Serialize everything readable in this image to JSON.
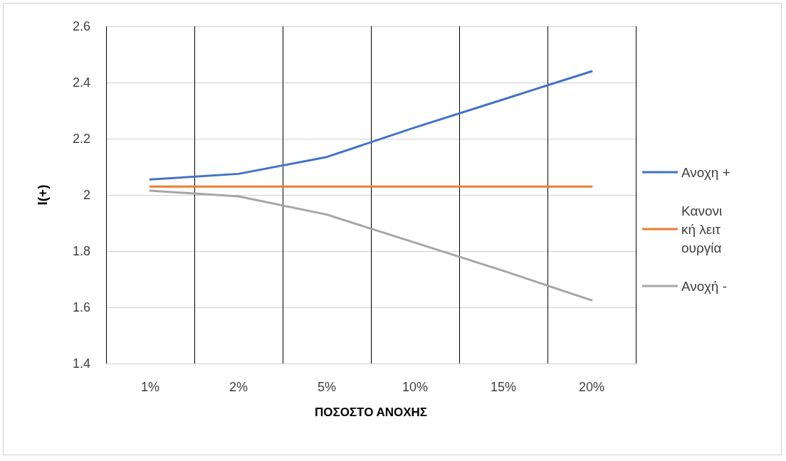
{
  "chart_data": {
    "type": "line",
    "xlabel": "ΠΟΣΟΣΤΟ ΑΝΟΧΗΣ",
    "ylabel": "I(+)",
    "categories": [
      "1%",
      "2%",
      "5%",
      "10%",
      "15%",
      "20%"
    ],
    "series": [
      {
        "name": "Ανοχη +",
        "color": "#4472c4",
        "values": [
          2.055,
          2.075,
          2.135,
          2.24,
          2.34,
          2.44
        ]
      },
      {
        "name": "Κανονική λειτουργία",
        "color": "#ed7d31",
        "values": [
          2.03,
          2.03,
          2.03,
          2.03,
          2.03,
          2.03
        ]
      },
      {
        "name": "Ανοχή -",
        "color": "#a5a5a5",
        "values": [
          2.015,
          1.995,
          1.93,
          1.83,
          1.73,
          1.625
        ]
      }
    ],
    "ylim": [
      1.4,
      2.6
    ],
    "yticks": [
      1.4,
      1.6,
      1.8,
      2,
      2.2,
      2.4,
      2.6
    ],
    "grid": true,
    "legend": "right",
    "marker": "none",
    "line_style": "solid"
  }
}
